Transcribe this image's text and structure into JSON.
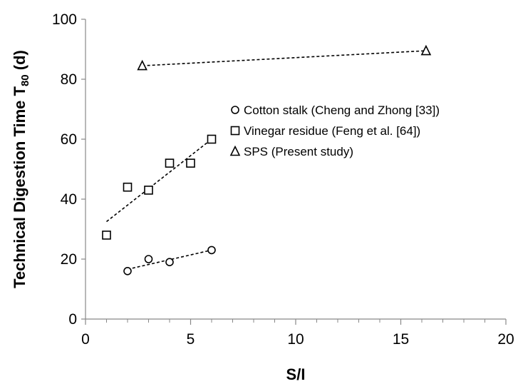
{
  "chart_data": {
    "type": "scatter",
    "xlabel": "S/I",
    "ylabel": "Technical Digestion Time T",
    "ylabel_subscript": "80",
    "ylabel_suffix": " (d)",
    "xlim": [
      0,
      20
    ],
    "ylim": [
      0,
      100
    ],
    "xticks": [
      0,
      5,
      10,
      15,
      20
    ],
    "yticks": [
      0,
      20,
      40,
      60,
      80,
      100
    ],
    "x_minor_step": 1,
    "grid": false,
    "legend_position": "upper-right-inside",
    "series": [
      {
        "name": "Cotton stalk (Cheng and Zhong [33])",
        "marker": "circle",
        "points": [
          [
            2,
            16
          ],
          [
            3,
            20
          ],
          [
            4,
            19
          ],
          [
            6,
            23
          ]
        ],
        "trendline": [
          [
            2,
            16.6
          ],
          [
            6,
            23.0
          ]
        ]
      },
      {
        "name": "Vinegar residue (Feng et al. [64])",
        "marker": "square",
        "points": [
          [
            1,
            28
          ],
          [
            2,
            44
          ],
          [
            3,
            43
          ],
          [
            4,
            52
          ],
          [
            5,
            52
          ],
          [
            6,
            60
          ]
        ],
        "trendline": [
          [
            1,
            32.5
          ],
          [
            6,
            60.0
          ]
        ]
      },
      {
        "name": "SPS (Present study)",
        "marker": "triangle",
        "points": [
          [
            2.7,
            84.5
          ],
          [
            16.2,
            89.5
          ]
        ],
        "trendline": [
          [
            2.7,
            84.5
          ],
          [
            16.2,
            89.5
          ]
        ]
      }
    ]
  }
}
